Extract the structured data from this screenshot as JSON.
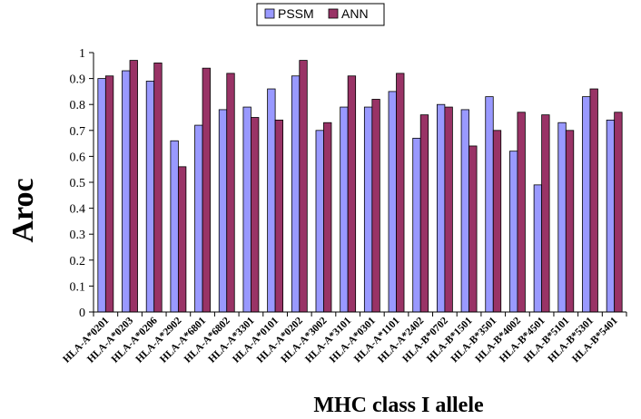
{
  "chart_data": {
    "type": "bar",
    "xlabel": "MHC class I allele",
    "ylabel": "Aroc",
    "ylim": [
      0,
      1
    ],
    "yticks": [
      "0",
      "0.1",
      "0.2",
      "0.3",
      "0.4",
      "0.5",
      "0.6",
      "0.7",
      "0.8",
      "0.9",
      "1"
    ],
    "grid": false,
    "legend_position": "top-center",
    "categories": [
      "HLA-A*0201",
      "HLA-A*0203",
      "HLA-A*0206",
      "HLA-A*2902",
      "HLA-A*6801",
      "HLA-A*6802",
      "HLA-A*3301",
      "HLA-A*0101",
      "HLA-A*0202",
      "HLA-A*3002",
      "HLA-A*3101",
      "HLA-A*0301",
      "HLA-A*1101",
      "HLA-A*2402",
      "HLA-B*0702",
      "HLA-B*1501",
      "HLA-B*3501",
      "HLA-B*4002",
      "HLA-B*4501",
      "HLA-B*5101",
      "HLA-B*5301",
      "HLA-B*5401"
    ],
    "series": [
      {
        "name": "PSSM",
        "color": "#9999FF",
        "values": [
          0.9,
          0.93,
          0.89,
          0.66,
          0.72,
          0.78,
          0.79,
          0.86,
          0.91,
          0.7,
          0.79,
          0.79,
          0.85,
          0.67,
          0.8,
          0.78,
          0.83,
          0.62,
          0.49,
          0.73,
          0.83,
          0.74
        ]
      },
      {
        "name": "ANN",
        "color": "#993366",
        "values": [
          0.91,
          0.97,
          0.96,
          0.56,
          0.94,
          0.92,
          0.75,
          0.74,
          0.97,
          0.73,
          0.91,
          0.82,
          0.92,
          0.76,
          0.79,
          0.64,
          0.7,
          0.77,
          0.76,
          0.7,
          0.86,
          0.77
        ]
      }
    ]
  }
}
